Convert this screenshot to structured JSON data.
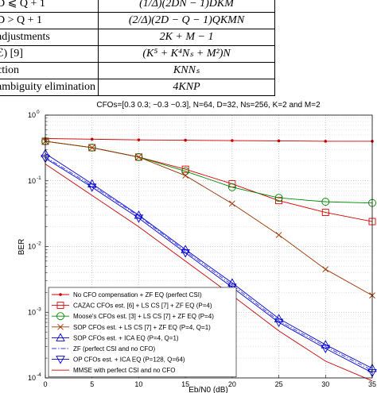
{
  "table": {
    "rows": [
      {
        "label": "D ⩽ Q + 1",
        "value": "(1/Δ)(2DN − 1)DKM"
      },
      {
        "label": "D > Q + 1",
        "value": "(2/Δ)(2D − Q − 1)QKMN"
      },
      {
        "label": "adjustments",
        "value": "2K + M − 1"
      },
      {
        "label": "ℰ) [9]",
        "value": "(K⁵ + K⁴Nₛ + M²)N"
      },
      {
        "label": "ction",
        "value": "KNNₛ"
      },
      {
        "label": "ambiguity elimination",
        "value": "4KNP"
      }
    ]
  },
  "chart_data": {
    "type": "line",
    "title": "CFOs=[0.3 0.3; −0.3 −0.3], N=64, D=32, Ns=256, K=2 and M=2",
    "xlabel": "Eb/N0 (dB)",
    "ylabel": "BER",
    "xlim": [
      0,
      35
    ],
    "ylim": [
      0.0001,
      1
    ],
    "yscale": "log",
    "grid": true,
    "legend_position": "bottom-left",
    "x_ticks": [
      "0",
      "5",
      "10",
      "15",
      "20",
      "25",
      "30",
      "35"
    ],
    "y_ticks": [
      {
        "base": "10",
        "exp": "0",
        "value": 1
      },
      {
        "base": "10",
        "exp": "-1",
        "value": 0.1
      },
      {
        "base": "10",
        "exp": "-2",
        "value": 0.01
      },
      {
        "base": "10",
        "exp": "-3",
        "value": 0.001
      },
      {
        "base": "10",
        "exp": "-4",
        "value": 0.0001
      }
    ],
    "series": [
      {
        "name": "No CFO compensation + ZF EQ (perfect CSI)",
        "color": "#cc0000",
        "marker": "dot",
        "dash": "solid",
        "x": [
          0,
          5,
          10,
          15,
          20,
          25,
          30,
          35
        ],
        "y": [
          0.44,
          0.43,
          0.42,
          0.415,
          0.41,
          0.405,
          0.4,
          0.4
        ]
      },
      {
        "name": "CAZAC CFOs est. [6] + LS CS [7] + ZF EQ (P=4)",
        "color": "#dd0000",
        "marker": "square",
        "dash": "solid",
        "x": [
          0,
          5,
          10,
          15,
          20,
          25,
          30,
          35
        ],
        "y": [
          0.4,
          0.32,
          0.23,
          0.15,
          0.09,
          0.05,
          0.033,
          0.024
        ]
      },
      {
        "name": "Moose's CFOs est. [3] + LS CS [7] + ZF EQ (P=4)",
        "color": "#008800",
        "marker": "circle",
        "dash": "solid",
        "x": [
          0,
          5,
          10,
          15,
          20,
          25,
          30,
          35
        ],
        "y": [
          0.4,
          0.32,
          0.23,
          0.14,
          0.08,
          0.055,
          0.048,
          0.046
        ]
      },
      {
        "name": "SOP CFOs est. + LS CS [7] + ZF EQ (P=4, Q=1)",
        "color": "#993300",
        "marker": "x",
        "dash": "solid",
        "x": [
          0,
          5,
          10,
          15,
          20,
          25,
          30,
          35
        ],
        "y": [
          0.4,
          0.32,
          0.23,
          0.12,
          0.045,
          0.015,
          0.0045,
          0.0018
        ]
      },
      {
        "name": "SOP CFOs est. + ICA EQ (P=4, Q=1)",
        "color": "#0000cc",
        "marker": "triangle-up",
        "dash": "solid",
        "x": [
          0,
          5,
          10,
          15,
          20,
          25,
          30,
          35
        ],
        "y": [
          0.26,
          0.09,
          0.03,
          0.009,
          0.0028,
          0.0008,
          0.00032,
          0.00014
        ]
      },
      {
        "name": "ZF (perfect CSI and no CFO)",
        "color": "#3333ff",
        "marker": "none",
        "dash": "dash-dot",
        "x": [
          0,
          5,
          10,
          15,
          20,
          25,
          30,
          35
        ],
        "y": [
          0.23,
          0.085,
          0.029,
          0.0085,
          0.0026,
          0.00074,
          0.0003,
          0.00013
        ]
      },
      {
        "name": "OP CFOs est. + ICA EQ (P=128, Q=64)",
        "color": "#0000cc",
        "marker": "triangle-down",
        "dash": "solid",
        "x": [
          0,
          5,
          10,
          15,
          20,
          25,
          30,
          35
        ],
        "y": [
          0.22,
          0.08,
          0.027,
          0.008,
          0.0024,
          0.0007,
          0.00028,
          0.00012
        ]
      },
      {
        "name": "MMSE with perfect CSI and no CFO",
        "color": "#cc0000",
        "marker": "none",
        "dash": "solid",
        "x": [
          0,
          5,
          10,
          15,
          20,
          25,
          30,
          35
        ],
        "y": [
          0.18,
          0.06,
          0.02,
          0.006,
          0.0018,
          0.00052,
          0.00018,
          9e-05
        ]
      }
    ]
  }
}
